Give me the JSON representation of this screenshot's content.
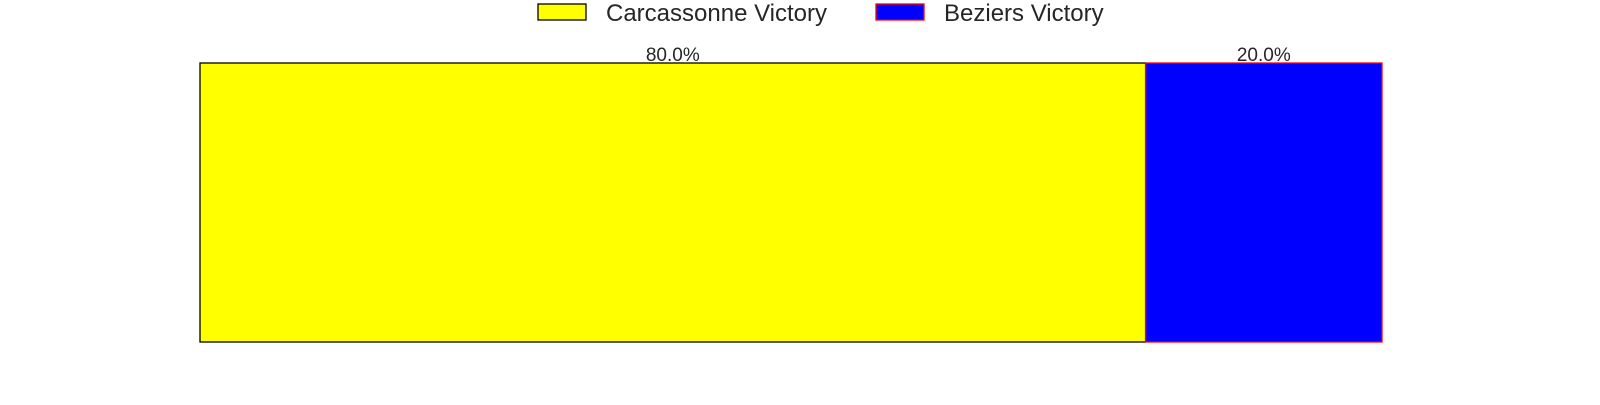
{
  "chart_data": {
    "type": "bar",
    "orientation": "horizontal-stacked",
    "unit": "%",
    "series": [
      {
        "name": "Carcassonne Victory",
        "value": 80.0,
        "label": "80.0%",
        "fill": "#ffff00",
        "stroke": "#000000"
      },
      {
        "name": "Beziers Victory",
        "value": 20.0,
        "label": "20.0%",
        "fill": "#0000ff",
        "stroke": "#ff0000"
      }
    ],
    "xlim": [
      0,
      100
    ],
    "grid": false,
    "legend_position": "top-center",
    "title": "",
    "xlabel": "",
    "ylabel": ""
  }
}
